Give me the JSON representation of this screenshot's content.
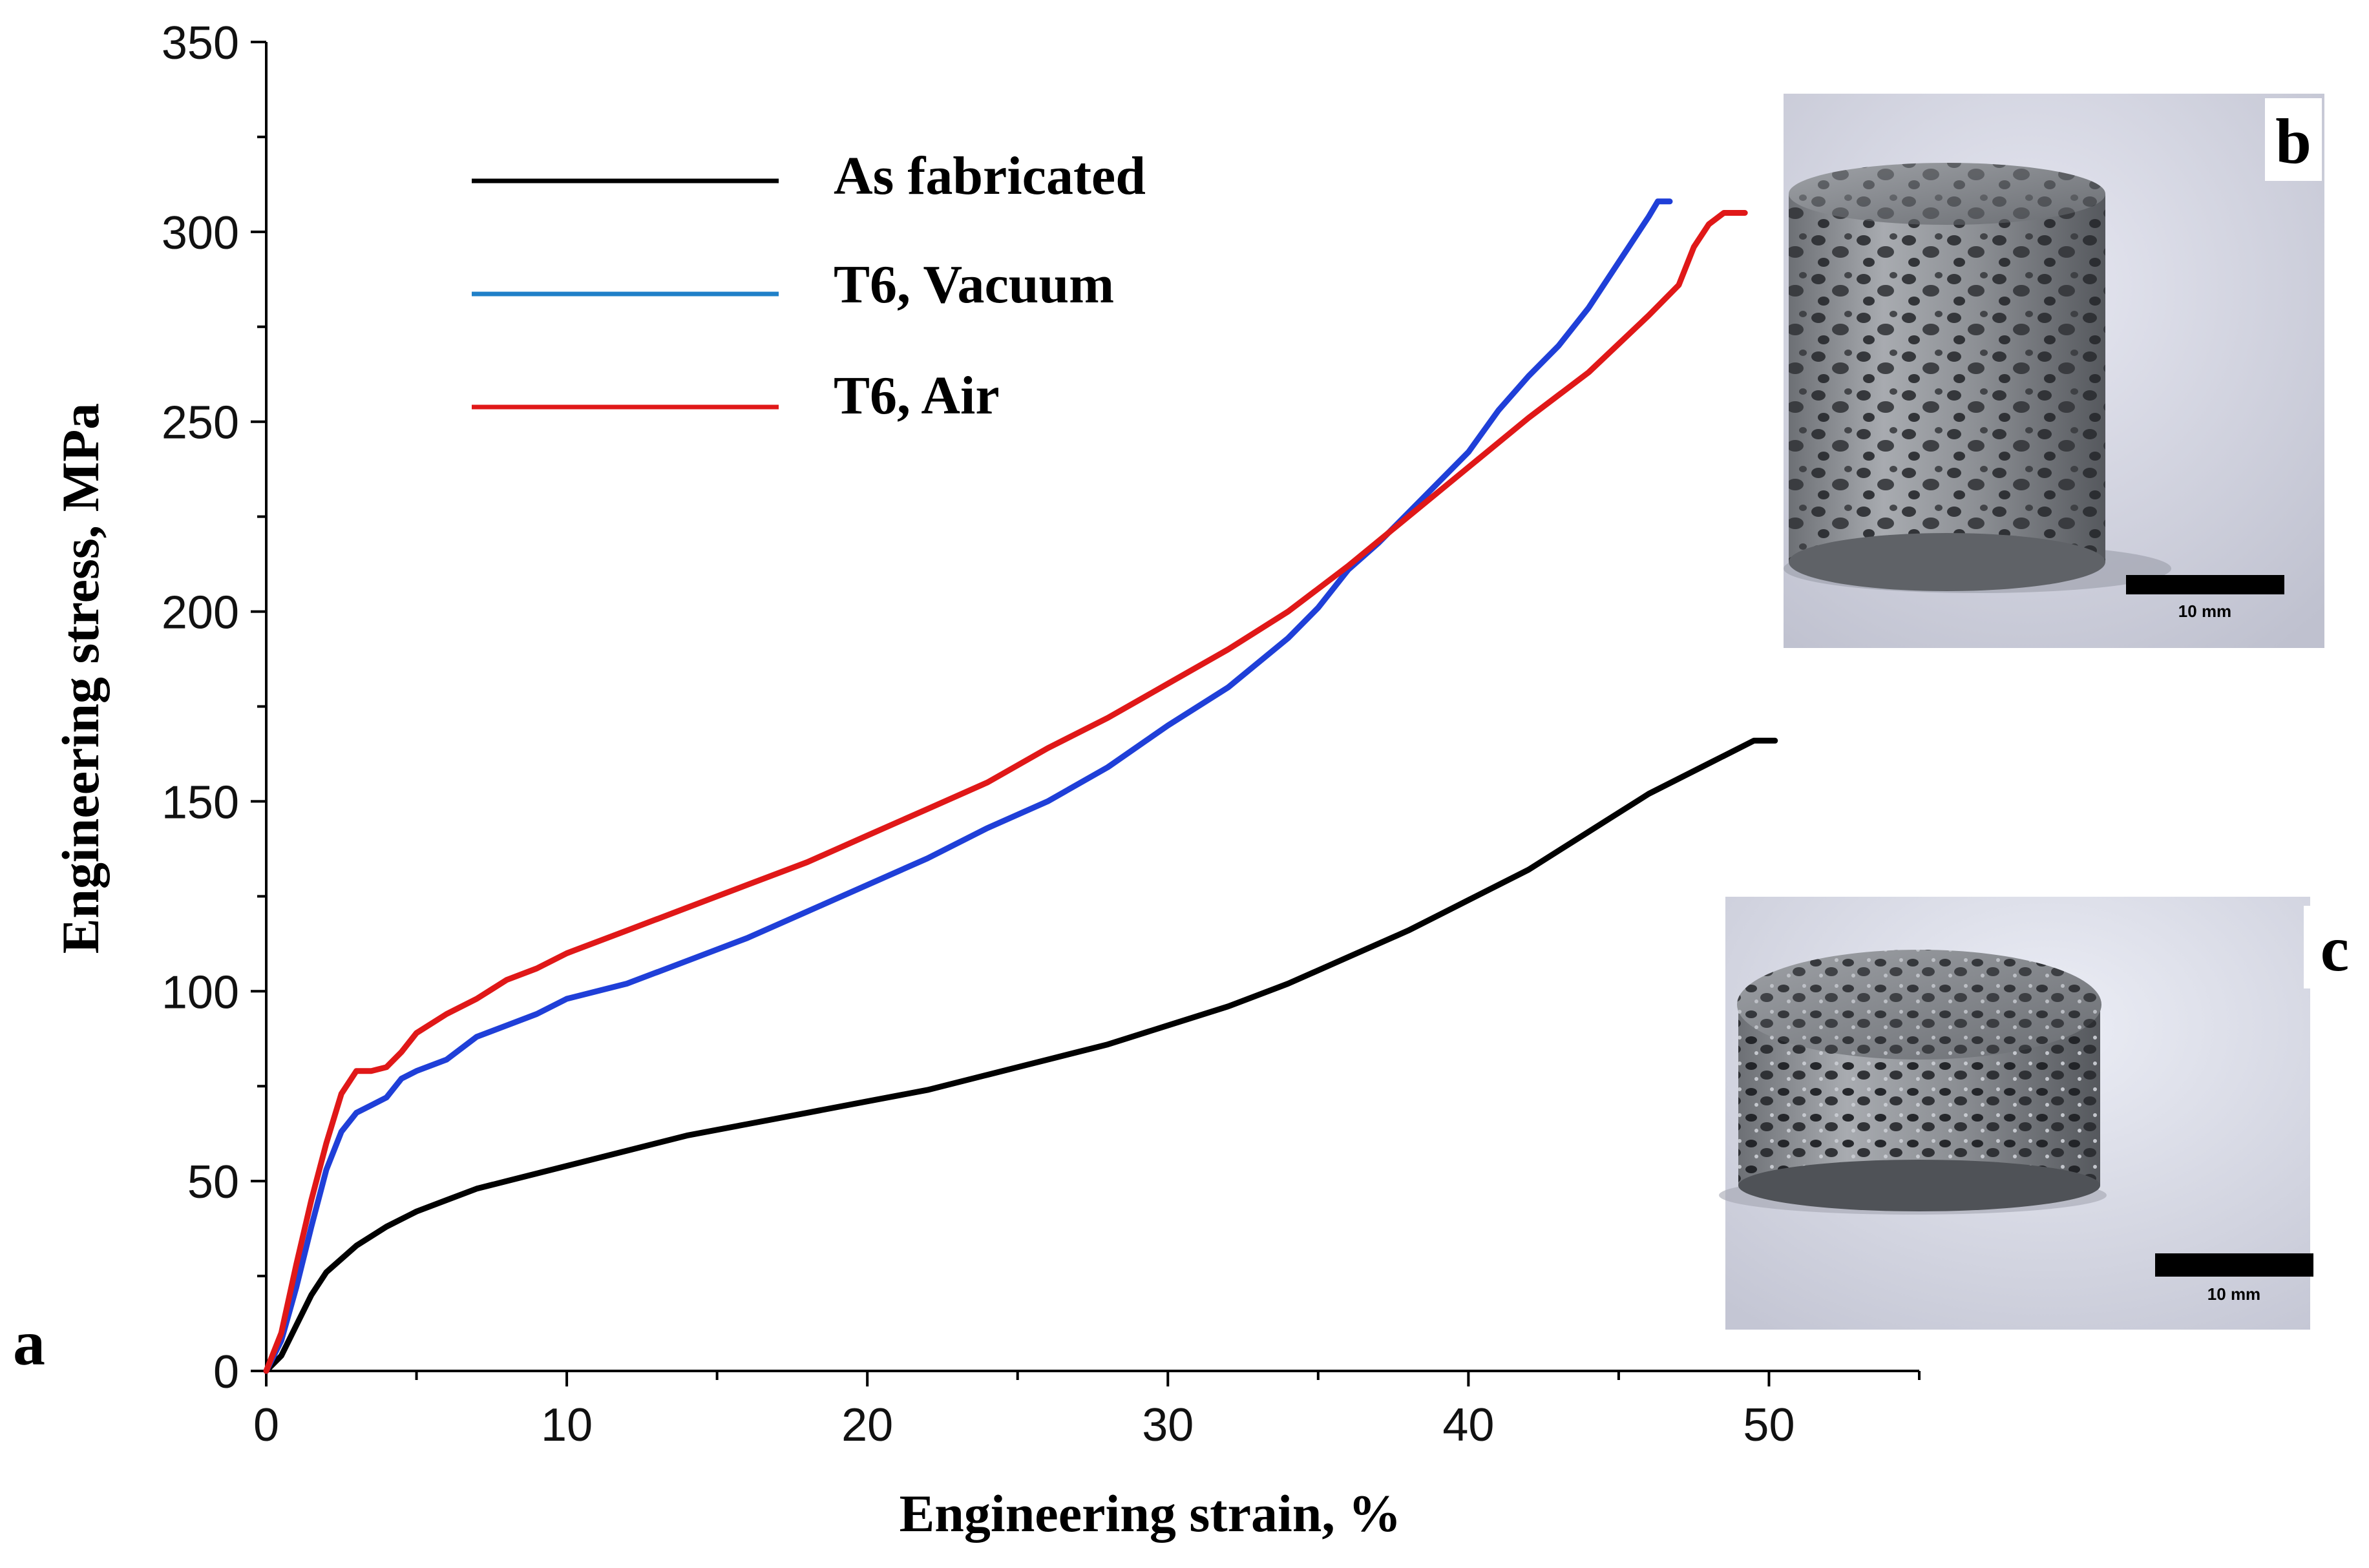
{
  "chart_data": {
    "type": "line",
    "xlabel": "Engineering strain, %",
    "ylabel": "Engineering stress, MPa",
    "xlim": [
      0,
      55
    ],
    "ylim": [
      0,
      350
    ],
    "x_ticks": [
      0,
      10,
      20,
      30,
      40,
      50
    ],
    "y_ticks": [
      0,
      50,
      100,
      150,
      200,
      250,
      300,
      350
    ],
    "legend_position": "top-left",
    "series": [
      {
        "name": "As fabricated",
        "color": "#000000",
        "points": [
          [
            0,
            0
          ],
          [
            0.5,
            4
          ],
          [
            1,
            12
          ],
          [
            1.5,
            20
          ],
          [
            2,
            26
          ],
          [
            3,
            33
          ],
          [
            4,
            38
          ],
          [
            5,
            42
          ],
          [
            6,
            45
          ],
          [
            7,
            48
          ],
          [
            8,
            50
          ],
          [
            10,
            54
          ],
          [
            12,
            58
          ],
          [
            14,
            62
          ],
          [
            16,
            65
          ],
          [
            18,
            68
          ],
          [
            20,
            71
          ],
          [
            22,
            74
          ],
          [
            24,
            78
          ],
          [
            26,
            82
          ],
          [
            28,
            86
          ],
          [
            30,
            91
          ],
          [
            32,
            96
          ],
          [
            34,
            102
          ],
          [
            36,
            109
          ],
          [
            38,
            116
          ],
          [
            40,
            124
          ],
          [
            42,
            132
          ],
          [
            44,
            142
          ],
          [
            46,
            152
          ],
          [
            48,
            160
          ],
          [
            49.5,
            166
          ],
          [
            50.2,
            166
          ]
        ]
      },
      {
        "name": "T6, Vacuum",
        "color": "#1f3fd8",
        "points": [
          [
            0,
            0
          ],
          [
            0.5,
            8
          ],
          [
            1,
            22
          ],
          [
            1.5,
            38
          ],
          [
            2,
            53
          ],
          [
            2.5,
            63
          ],
          [
            3,
            68
          ],
          [
            3.5,
            70
          ],
          [
            4,
            72
          ],
          [
            4.5,
            77
          ],
          [
            5,
            79
          ],
          [
            6,
            82
          ],
          [
            7,
            88
          ],
          [
            8,
            91
          ],
          [
            9,
            94
          ],
          [
            10,
            98
          ],
          [
            12,
            102
          ],
          [
            14,
            108
          ],
          [
            16,
            114
          ],
          [
            18,
            121
          ],
          [
            20,
            128
          ],
          [
            22,
            135
          ],
          [
            24,
            143
          ],
          [
            26,
            150
          ],
          [
            28,
            159
          ],
          [
            30,
            170
          ],
          [
            32,
            180
          ],
          [
            34,
            193
          ],
          [
            35,
            201
          ],
          [
            36,
            211
          ],
          [
            37,
            218
          ],
          [
            38,
            226
          ],
          [
            39,
            234
          ],
          [
            40,
            242
          ],
          [
            41,
            253
          ],
          [
            42,
            262
          ],
          [
            43,
            270
          ],
          [
            44,
            280
          ],
          [
            45,
            292
          ],
          [
            46,
            304
          ],
          [
            46.3,
            308
          ],
          [
            46.7,
            308
          ]
        ]
      },
      {
        "name": "T6, Air",
        "color": "#e01818",
        "points": [
          [
            0,
            0
          ],
          [
            0.5,
            10
          ],
          [
            1,
            28
          ],
          [
            1.5,
            45
          ],
          [
            2,
            60
          ],
          [
            2.5,
            73
          ],
          [
            3,
            79
          ],
          [
            3.5,
            79
          ],
          [
            4,
            80
          ],
          [
            4.5,
            84
          ],
          [
            5,
            89
          ],
          [
            6,
            94
          ],
          [
            7,
            98
          ],
          [
            8,
            103
          ],
          [
            9,
            106
          ],
          [
            10,
            110
          ],
          [
            12,
            116
          ],
          [
            14,
            122
          ],
          [
            16,
            128
          ],
          [
            18,
            134
          ],
          [
            20,
            141
          ],
          [
            22,
            148
          ],
          [
            24,
            155
          ],
          [
            26,
            164
          ],
          [
            28,
            172
          ],
          [
            30,
            181
          ],
          [
            32,
            190
          ],
          [
            34,
            200
          ],
          [
            36,
            212
          ],
          [
            38,
            225
          ],
          [
            40,
            238
          ],
          [
            42,
            251
          ],
          [
            44,
            263
          ],
          [
            46,
            278
          ],
          [
            47,
            286
          ],
          [
            47.5,
            296
          ],
          [
            48,
            302
          ],
          [
            48.5,
            305
          ],
          [
            49.2,
            305
          ]
        ]
      }
    ]
  },
  "insets": [
    {
      "letter": "b",
      "scale_label": "10 mm"
    },
    {
      "letter": "c",
      "scale_label": "10 mm"
    }
  ],
  "panel_a_letter": "a"
}
